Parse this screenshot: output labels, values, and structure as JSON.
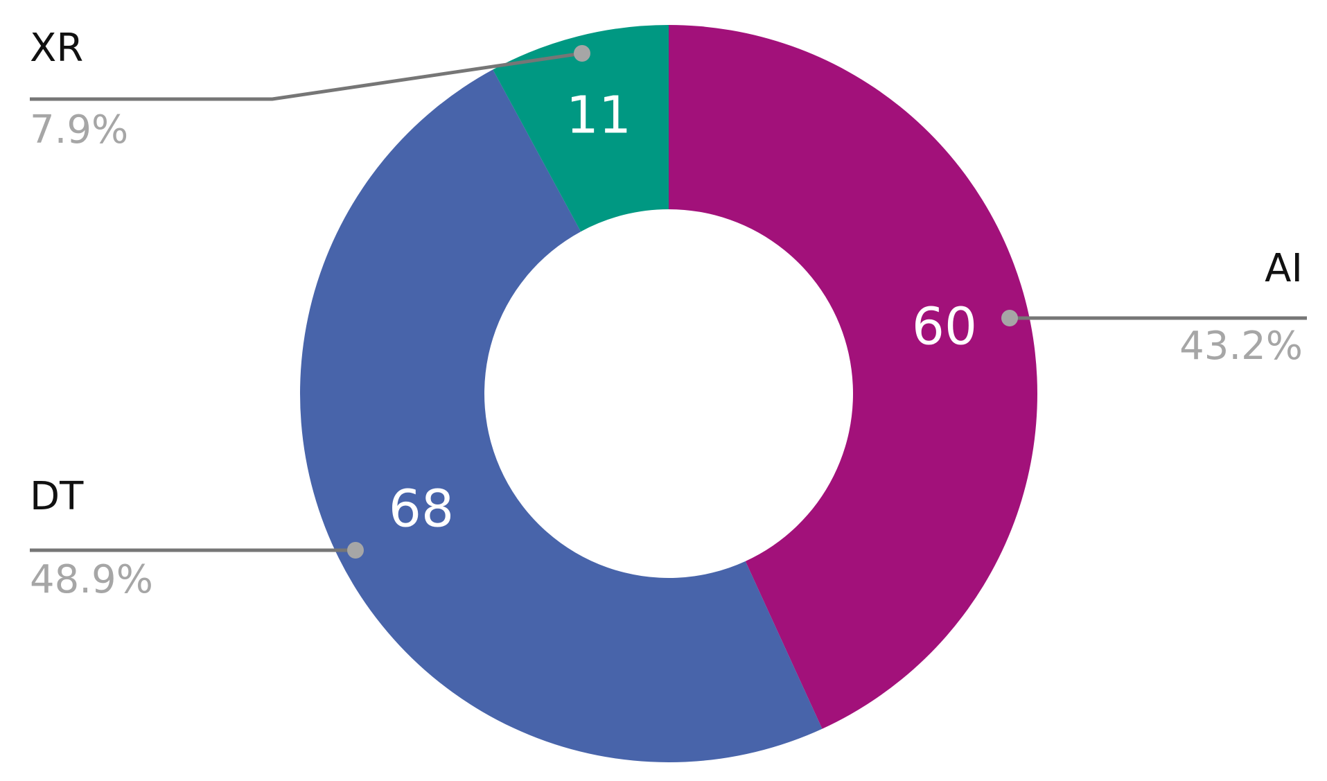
{
  "chart_data": {
    "type": "donut",
    "categories": [
      "AI",
      "DT",
      "XR"
    ],
    "values": [
      60,
      68,
      11
    ],
    "percent_labels": [
      "43.2%",
      "48.9%",
      "7.9%"
    ],
    "colors": [
      "#a2117a",
      "#4864aa",
      "#009882"
    ]
  }
}
